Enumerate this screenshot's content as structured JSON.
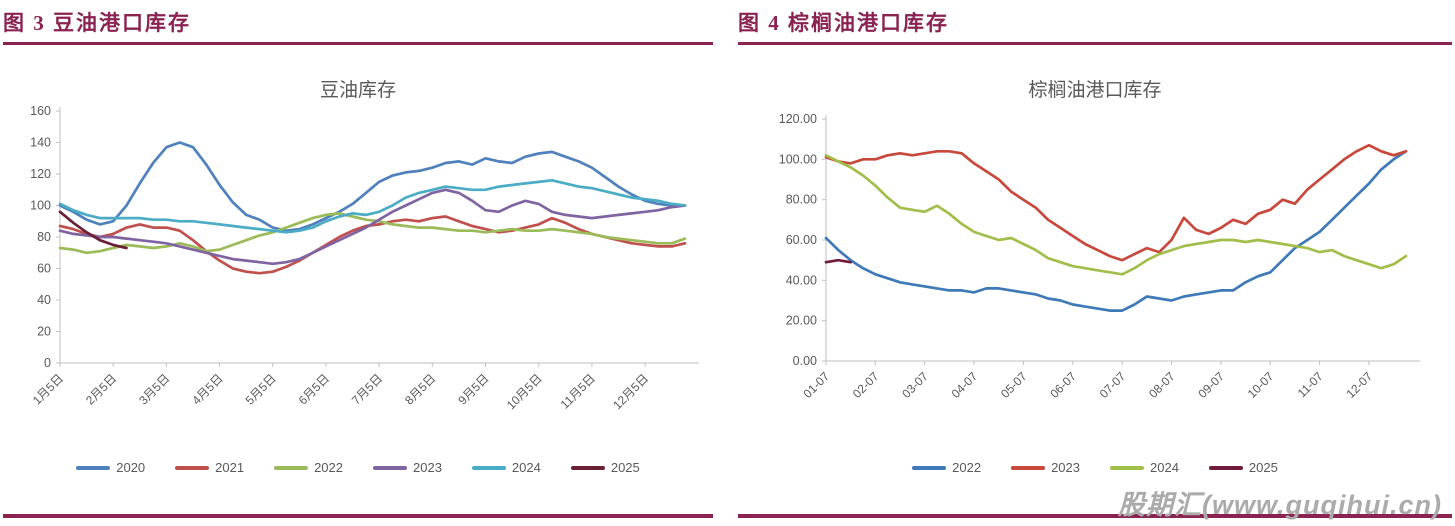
{
  "colors": {
    "accent_rule": "#8A2252",
    "caption_text": "#8A2252",
    "chart_text": "#595959",
    "axis_line": "#BFBFBF",
    "watermark_text": "#ABABAB"
  },
  "watermark": "股期汇(www.guqihui.cn)",
  "panels": [
    {
      "header": "图 3  豆油港口库存",
      "chart_data": {
        "type": "line",
        "title": "豆油库存",
        "ylim": [
          0,
          160
        ],
        "y_step": 20,
        "grid": false,
        "legend_position": "bottom",
        "y_tick_labels": [
          "0",
          "20",
          "40",
          "60",
          "80",
          "100",
          "120",
          "140",
          "160"
        ],
        "x_tick_labels": [
          "1月5日",
          "2月5日",
          "3月5日",
          "4月5日",
          "5月5日",
          "6月5日",
          "7月5日",
          "8月5日",
          "9月5日",
          "10月5日",
          "11月5日",
          "12月5日"
        ],
        "points_per_tick": 4,
        "series": [
          {
            "name": "2020",
            "color": "#4F81BD",
            "values": [
              100,
              96,
              91,
              88,
              90,
              100,
              114,
              127,
              137,
              140,
              137,
              126,
              113,
              102,
              94,
              91,
              86,
              84,
              85,
              88,
              92,
              96,
              101,
              108,
              115,
              119,
              121,
              122,
              124,
              127,
              128,
              126,
              130,
              128,
              127,
              131,
              133,
              134,
              131,
              128,
              124,
              118,
              112,
              107,
              103,
              101,
              100,
              100
            ]
          },
          {
            "name": "2021",
            "color": "#C0504D",
            "values": [
              87,
              85,
              82,
              80,
              82,
              86,
              88,
              86,
              86,
              84,
              78,
              71,
              65,
              60,
              58,
              57,
              58,
              61,
              65,
              70,
              75,
              80,
              84,
              87,
              88,
              90,
              91,
              90,
              92,
              93,
              90,
              87,
              85,
              83,
              84,
              86,
              88,
              92,
              89,
              85,
              82,
              80,
              78,
              76,
              75,
              74,
              74,
              76
            ]
          },
          {
            "name": "2022",
            "color": "#9BBB59",
            "values": [
              73,
              72,
              70,
              71,
              73,
              75,
              74,
              73,
              74,
              76,
              74,
              71,
              72,
              75,
              78,
              81,
              83,
              86,
              89,
              92,
              94,
              95,
              93,
              91,
              90,
              88,
              87,
              86,
              86,
              85,
              84,
              84,
              83,
              84,
              85,
              84,
              84,
              85,
              84,
              83,
              82,
              80,
              79,
              78,
              77,
              76,
              76,
              79
            ]
          },
          {
            "name": "2023",
            "color": "#8064A2",
            "values": [
              84,
              82,
              81,
              80,
              80,
              79,
              78,
              77,
              76,
              74,
              72,
              70,
              68,
              66,
              65,
              64,
              63,
              64,
              66,
              70,
              74,
              78,
              82,
              86,
              91,
              96,
              100,
              104,
              108,
              110,
              108,
              103,
              97,
              96,
              100,
              103,
              101,
              96,
              94,
              93,
              92,
              93,
              94,
              95,
              96,
              97,
              99,
              100
            ]
          },
          {
            "name": "2024",
            "color": "#4BACC6",
            "values": [
              101,
              97,
              94,
              92,
              92,
              92,
              92,
              91,
              91,
              90,
              90,
              89,
              88,
              87,
              86,
              85,
              84,
              83,
              84,
              86,
              90,
              93,
              95,
              94,
              96,
              100,
              105,
              108,
              110,
              112,
              111,
              110,
              110,
              112,
              113,
              114,
              115,
              116,
              114,
              112,
              111,
              109,
              107,
              105,
              104,
              103,
              101,
              100
            ]
          },
          {
            "name": "2025",
            "color": "#6A2135",
            "values": [
              96,
              89,
              83,
              78,
              75,
              73
            ]
          }
        ]
      }
    },
    {
      "header": "图 4  棕榈油港口库存",
      "chart_data": {
        "type": "line",
        "title": "棕榈油港口库存",
        "ylim": [
          0,
          120
        ],
        "y_step": 20,
        "grid": false,
        "legend_position": "bottom",
        "y_tick_labels": [
          "0.00",
          "20.00",
          "40.00",
          "60.00",
          "80.00",
          "100.00",
          "120.00"
        ],
        "x_tick_labels": [
          "01-07",
          "02-07",
          "03-07",
          "04-07",
          "05-07",
          "06-07",
          "07-07",
          "08-07",
          "09-07",
          "10-07",
          "11-07",
          "12-07"
        ],
        "points_per_tick": 4,
        "series": [
          {
            "name": "2022",
            "color": "#3E79B8",
            "values": [
              61,
              55,
              50,
              46,
              43,
              41,
              39,
              38,
              37,
              36,
              35,
              35,
              34,
              36,
              36,
              35,
              34,
              33,
              31,
              30,
              28,
              27,
              26,
              25,
              25,
              28,
              32,
              31,
              30,
              32,
              33,
              34,
              35,
              35,
              39,
              42,
              44,
              50,
              56,
              60,
              64,
              70,
              76,
              82,
              88,
              95,
              100,
              104
            ]
          },
          {
            "name": "2023",
            "color": "#C8493C",
            "values": [
              101,
              99,
              98,
              100,
              100,
              102,
              103,
              102,
              103,
              104,
              104,
              103,
              98,
              94,
              90,
              84,
              80,
              76,
              70,
              66,
              62,
              58,
              55,
              52,
              50,
              53,
              56,
              54,
              60,
              71,
              65,
              63,
              66,
              70,
              68,
              73,
              75,
              80,
              78,
              85,
              90,
              95,
              100,
              104,
              107,
              104,
              102,
              104
            ]
          },
          {
            "name": "2024",
            "color": "#A2BE4A",
            "values": [
              102,
              99,
              96,
              92,
              87,
              81,
              76,
              75,
              74,
              77,
              73,
              68,
              64,
              62,
              60,
              61,
              58,
              55,
              51,
              49,
              47,
              46,
              45,
              44,
              43,
              46,
              50,
              53,
              55,
              57,
              58,
              59,
              60,
              60,
              59,
              60,
              59,
              58,
              57,
              56,
              54,
              55,
              52,
              50,
              48,
              46,
              48,
              52
            ]
          },
          {
            "name": "2025",
            "color": "#701A3C",
            "values": [
              49,
              50,
              49
            ]
          }
        ]
      }
    }
  ]
}
